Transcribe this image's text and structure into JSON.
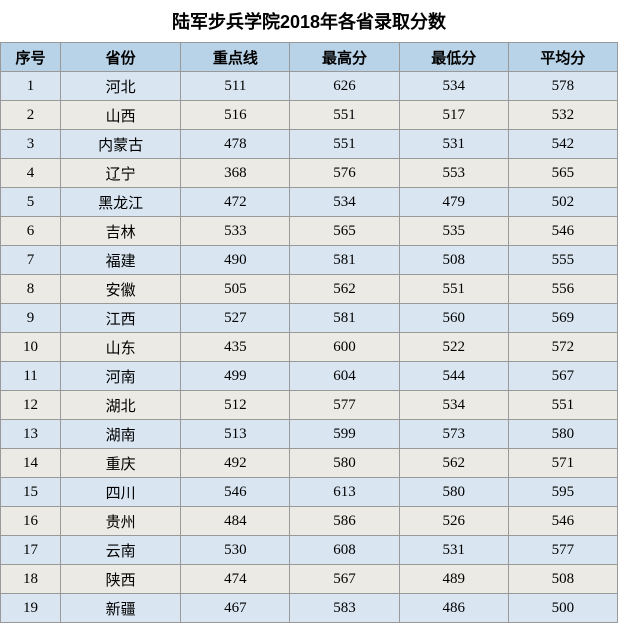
{
  "title": "陆军步兵学院2018年各省录取分数",
  "columns": [
    "序号",
    "省份",
    "重点线",
    "最高分",
    "最低分",
    "平均分"
  ],
  "rows": [
    [
      "1",
      "河北",
      "511",
      "626",
      "534",
      "578"
    ],
    [
      "2",
      "山西",
      "516",
      "551",
      "517",
      "532"
    ],
    [
      "3",
      "内蒙古",
      "478",
      "551",
      "531",
      "542"
    ],
    [
      "4",
      "辽宁",
      "368",
      "576",
      "553",
      "565"
    ],
    [
      "5",
      "黑龙江",
      "472",
      "534",
      "479",
      "502"
    ],
    [
      "6",
      "吉林",
      "533",
      "565",
      "535",
      "546"
    ],
    [
      "7",
      "福建",
      "490",
      "581",
      "508",
      "555"
    ],
    [
      "8",
      "安徽",
      "505",
      "562",
      "551",
      "556"
    ],
    [
      "9",
      "江西",
      "527",
      "581",
      "560",
      "569"
    ],
    [
      "10",
      "山东",
      "435",
      "600",
      "522",
      "572"
    ],
    [
      "11",
      "河南",
      "499",
      "604",
      "544",
      "567"
    ],
    [
      "12",
      "湖北",
      "512",
      "577",
      "534",
      "551"
    ],
    [
      "13",
      "湖南",
      "513",
      "599",
      "573",
      "580"
    ],
    [
      "14",
      "重庆",
      "492",
      "580",
      "562",
      "571"
    ],
    [
      "15",
      "四川",
      "546",
      "613",
      "580",
      "595"
    ],
    [
      "16",
      "贵州",
      "484",
      "586",
      "526",
      "546"
    ],
    [
      "17",
      "云南",
      "530",
      "608",
      "531",
      "577"
    ],
    [
      "18",
      "陕西",
      "474",
      "567",
      "489",
      "508"
    ],
    [
      "19",
      "新疆",
      "467",
      "583",
      "486",
      "500"
    ]
  ],
  "colors": {
    "header_bg": "#b8d3e8",
    "row_odd_bg": "#d9e6f2",
    "row_even_bg": "#eceae4",
    "border": "#999999"
  }
}
